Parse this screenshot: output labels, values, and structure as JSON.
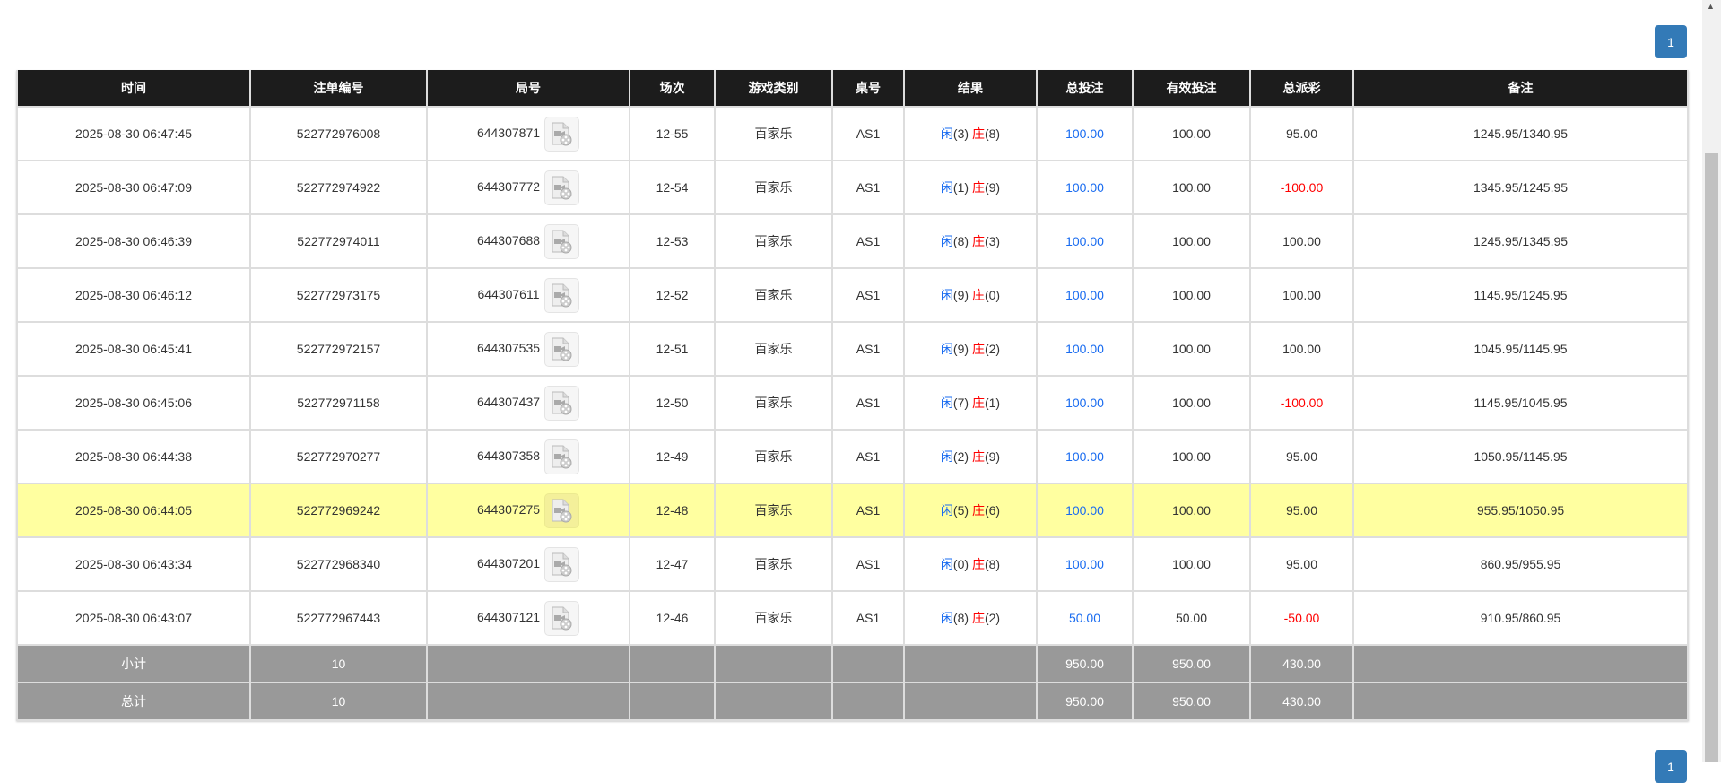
{
  "pagination": {
    "current": "1"
  },
  "table": {
    "headers": [
      "时间",
      "注单编号",
      "局号",
      "场次",
      "游戏类别",
      "桌号",
      "结果",
      "总投注",
      "有效投注",
      "总派彩",
      "备注"
    ],
    "player_label": "闲",
    "banker_label": "庄",
    "highlighted_row": 7,
    "rows": [
      {
        "time": "2025-08-30 06:47:45",
        "bet_id": "522772976008",
        "round": "644307871",
        "session": "12-55",
        "game": "百家乐",
        "table": "AS1",
        "player": "(3)",
        "banker": "(8)",
        "total_bet": "100.00",
        "valid_bet": "100.00",
        "payout": "95.00",
        "payout_negative": false,
        "note": "1245.95/1340.95"
      },
      {
        "time": "2025-08-30 06:47:09",
        "bet_id": "522772974922",
        "round": "644307772",
        "session": "12-54",
        "game": "百家乐",
        "table": "AS1",
        "player": "(1)",
        "banker": "(9)",
        "total_bet": "100.00",
        "valid_bet": "100.00",
        "payout": "-100.00",
        "payout_negative": true,
        "note": "1345.95/1245.95"
      },
      {
        "time": "2025-08-30 06:46:39",
        "bet_id": "522772974011",
        "round": "644307688",
        "session": "12-53",
        "game": "百家乐",
        "table": "AS1",
        "player": "(8)",
        "banker": "(3)",
        "total_bet": "100.00",
        "valid_bet": "100.00",
        "payout": "100.00",
        "payout_negative": false,
        "note": "1245.95/1345.95"
      },
      {
        "time": "2025-08-30 06:46:12",
        "bet_id": "522772973175",
        "round": "644307611",
        "session": "12-52",
        "game": "百家乐",
        "table": "AS1",
        "player": "(9)",
        "banker": "(0)",
        "total_bet": "100.00",
        "valid_bet": "100.00",
        "payout": "100.00",
        "payout_negative": false,
        "note": "1145.95/1245.95"
      },
      {
        "time": "2025-08-30 06:45:41",
        "bet_id": "522772972157",
        "round": "644307535",
        "session": "12-51",
        "game": "百家乐",
        "table": "AS1",
        "player": "(9)",
        "banker": "(2)",
        "total_bet": "100.00",
        "valid_bet": "100.00",
        "payout": "100.00",
        "payout_negative": false,
        "note": "1045.95/1145.95"
      },
      {
        "time": "2025-08-30 06:45:06",
        "bet_id": "522772971158",
        "round": "644307437",
        "session": "12-50",
        "game": "百家乐",
        "table": "AS1",
        "player": "(7)",
        "banker": "(1)",
        "total_bet": "100.00",
        "valid_bet": "100.00",
        "payout": "-100.00",
        "payout_negative": true,
        "note": "1145.95/1045.95"
      },
      {
        "time": "2025-08-30 06:44:38",
        "bet_id": "522772970277",
        "round": "644307358",
        "session": "12-49",
        "game": "百家乐",
        "table": "AS1",
        "player": "(2)",
        "banker": "(9)",
        "total_bet": "100.00",
        "valid_bet": "100.00",
        "payout": "95.00",
        "payout_negative": false,
        "note": "1050.95/1145.95"
      },
      {
        "time": "2025-08-30 06:44:05",
        "bet_id": "522772969242",
        "round": "644307275",
        "session": "12-48",
        "game": "百家乐",
        "table": "AS1",
        "player": "(5)",
        "banker": "(6)",
        "total_bet": "100.00",
        "valid_bet": "100.00",
        "payout": "95.00",
        "payout_negative": false,
        "note": "955.95/1050.95"
      },
      {
        "time": "2025-08-30 06:43:34",
        "bet_id": "522772968340",
        "round": "644307201",
        "session": "12-47",
        "game": "百家乐",
        "table": "AS1",
        "player": "(0)",
        "banker": "(8)",
        "total_bet": "100.00",
        "valid_bet": "100.00",
        "payout": "95.00",
        "payout_negative": false,
        "note": "860.95/955.95"
      },
      {
        "time": "2025-08-30 06:43:07",
        "bet_id": "522772967443",
        "round": "644307121",
        "session": "12-46",
        "game": "百家乐",
        "table": "AS1",
        "player": "(8)",
        "banker": "(2)",
        "total_bet": "50.00",
        "valid_bet": "50.00",
        "payout": "-50.00",
        "payout_negative": true,
        "note": "910.95/860.95"
      }
    ],
    "summary": [
      {
        "label": "小计",
        "count": "10",
        "total_bet": "950.00",
        "valid_bet": "950.00",
        "payout": "430.00"
      },
      {
        "label": "总计",
        "count": "10",
        "total_bet": "950.00",
        "valid_bet": "950.00",
        "payout": "430.00"
      }
    ]
  },
  "colors": {
    "header_bg": "#1c1c1c",
    "highlight": "#ffffa0",
    "summary_bg": "#999999",
    "player": "#1a6cf0",
    "banker": "#ff0000",
    "negative": "#ff0000",
    "pagination": "#337ab7"
  }
}
